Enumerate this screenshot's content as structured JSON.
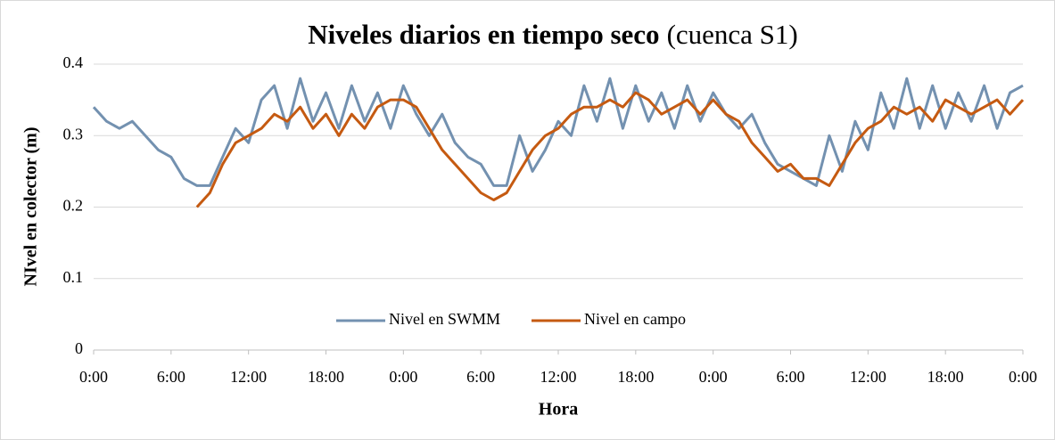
{
  "chart_data": {
    "type": "line",
    "title": "Niveles diarios en tiempo seco",
    "title_suffix": "(cuenca S1)",
    "x_label": "Hora",
    "y_label": "NIvel en colector (m)",
    "x": [
      0,
      1,
      2,
      3,
      4,
      5,
      6,
      7,
      8,
      9,
      10,
      11,
      12,
      13,
      14,
      15,
      16,
      17,
      18,
      19,
      20,
      21,
      22,
      23,
      24,
      25,
      26,
      27,
      28,
      29,
      30,
      31,
      32,
      33,
      34,
      35,
      36,
      37,
      38,
      39,
      40,
      41,
      42,
      43,
      44,
      45,
      46,
      47,
      48,
      49,
      50,
      51,
      52,
      53,
      54,
      55,
      56,
      57,
      58,
      59,
      60,
      61,
      62,
      63,
      64,
      65,
      66,
      67,
      68,
      69,
      70,
      71,
      72
    ],
    "xlim": [
      0,
      72
    ],
    "xticks": [
      {
        "value": 0,
        "label": "0:00"
      },
      {
        "value": 6,
        "label": "6:00"
      },
      {
        "value": 12,
        "label": "12:00"
      },
      {
        "value": 18,
        "label": "18:00"
      },
      {
        "value": 24,
        "label": "0:00"
      },
      {
        "value": 30,
        "label": "6:00"
      },
      {
        "value": 36,
        "label": "12:00"
      },
      {
        "value": 42,
        "label": "18:00"
      },
      {
        "value": 48,
        "label": "0:00"
      },
      {
        "value": 54,
        "label": "6:00"
      },
      {
        "value": 60,
        "label": "12:00"
      },
      {
        "value": 66,
        "label": "18:00"
      },
      {
        "value": 72,
        "label": "0:00"
      }
    ],
    "ylim": [
      0,
      0.4
    ],
    "yticks": [
      0,
      0.1,
      0.2,
      0.3,
      0.4
    ],
    "grid": true,
    "legend": "bottom",
    "series": [
      {
        "name": "Nivel en SWMM",
        "color": "#7391b0",
        "values": [
          0.34,
          0.32,
          0.31,
          0.32,
          0.3,
          0.28,
          0.27,
          0.24,
          0.23,
          0.23,
          0.27,
          0.31,
          0.29,
          0.35,
          0.37,
          0.31,
          0.38,
          0.32,
          0.36,
          0.31,
          0.37,
          0.32,
          0.36,
          0.31,
          0.37,
          0.33,
          0.3,
          0.33,
          0.29,
          0.27,
          0.26,
          0.23,
          0.23,
          0.3,
          0.25,
          0.28,
          0.32,
          0.3,
          0.37,
          0.32,
          0.38,
          0.31,
          0.37,
          0.32,
          0.36,
          0.31,
          0.37,
          0.32,
          0.36,
          0.33,
          0.31,
          0.33,
          0.29,
          0.26,
          0.25,
          0.24,
          0.23,
          0.3,
          0.25,
          0.32,
          0.28,
          0.36,
          0.31,
          0.38,
          0.31,
          0.37,
          0.31,
          0.36,
          0.32,
          0.37,
          0.31,
          0.36,
          0.37
        ]
      },
      {
        "name": "Nivel en campo",
        "color": "#c55a11",
        "values": [
          null,
          null,
          null,
          null,
          null,
          null,
          null,
          null,
          0.2,
          0.22,
          0.26,
          0.29,
          0.3,
          0.31,
          0.33,
          0.32,
          0.34,
          0.31,
          0.33,
          0.3,
          0.33,
          0.31,
          0.34,
          0.35,
          0.35,
          0.34,
          0.31,
          0.28,
          0.26,
          0.24,
          0.22,
          0.21,
          0.22,
          0.25,
          0.28,
          0.3,
          0.31,
          0.33,
          0.34,
          0.34,
          0.35,
          0.34,
          0.36,
          0.35,
          0.33,
          0.34,
          0.35,
          0.33,
          0.35,
          0.33,
          0.32,
          0.29,
          0.27,
          0.25,
          0.26,
          0.24,
          0.24,
          0.23,
          0.26,
          0.29,
          0.31,
          0.32,
          0.34,
          0.33,
          0.34,
          0.32,
          0.35,
          0.34,
          0.33,
          0.34,
          0.35,
          0.33,
          0.35
        ]
      }
    ]
  }
}
